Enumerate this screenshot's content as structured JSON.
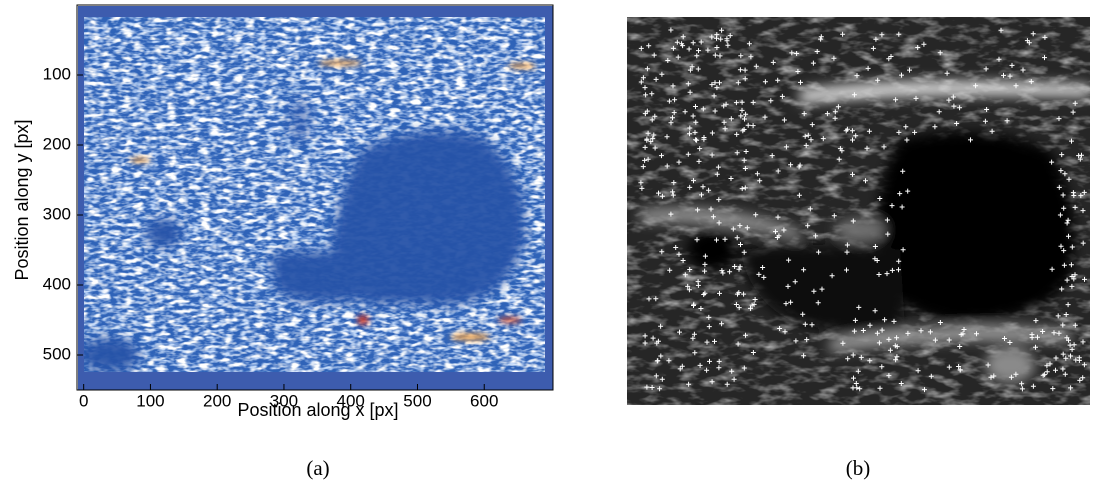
{
  "chart_data": [
    {
      "type": "image",
      "xlabel": "Position along x [px]",
      "ylabel": "Position along y [px]",
      "xlim": [
        -10,
        703
      ],
      "ylim": [
        0,
        550
      ],
      "y_reversed": true,
      "xticks": [
        0,
        100,
        200,
        300,
        400,
        500,
        600
      ],
      "yticks": [
        100,
        200,
        300,
        400,
        500
      ],
      "caption": "(a)"
    },
    {
      "type": "image",
      "caption": "(b)"
    }
  ]
}
